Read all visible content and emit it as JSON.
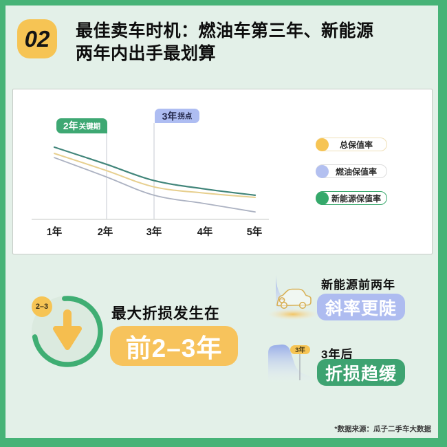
{
  "colors": {
    "frame_green": "#47B377",
    "background_mint": "#E3F0E8",
    "card_white": "#FFFFFF",
    "badge_yellow": "#F6C454",
    "pill_yellow": "#F7C35C",
    "pill_lavender": "#AEBCF0",
    "pill_green": "#3EA371",
    "ring_green": "#3FAE73",
    "arrow_yellow": "#F5BE4F"
  },
  "header": {
    "badge": "02",
    "title_line1": "最佳卖车时机：燃油车第三年、新能源",
    "title_line2": "两年内出手最划算"
  },
  "chart": {
    "flags": [
      {
        "big": "2年",
        "small": "关键期",
        "color": "#3EA873"
      },
      {
        "big": "3年",
        "small": "拐点",
        "color": "#AEBDF2"
      }
    ],
    "legend_borders": [
      "#EFDFB6",
      "#DCDCDC",
      "#3AA86D"
    ]
  },
  "chart_data": {
    "type": "line",
    "categories": [
      "1年",
      "2年",
      "3年",
      "4年",
      "5年"
    ],
    "series": [
      {
        "name": "总保值率",
        "color": "#F6C454",
        "stroke": "#E7CF8E",
        "values": [
          75,
          67,
          59,
          56,
          54
        ]
      },
      {
        "name": "燃油保值率",
        "color": "#B3C0F0",
        "stroke": "#ACB2C2",
        "values": [
          73,
          64,
          55,
          51,
          47
        ]
      },
      {
        "name": "新能源保值率",
        "color": "#35A96B",
        "stroke": "#41857A",
        "values": [
          78,
          70,
          62,
          58,
          55
        ]
      }
    ],
    "ylim_est": [
      40,
      85
    ],
    "y_axis_labeled": false,
    "grid": false,
    "legend_position": "right",
    "annotations": [
      "2年关键期",
      "3年拐点"
    ]
  },
  "highlight": {
    "badge": "2–3",
    "heading": "最大折损发生在",
    "value": "前2–3年"
  },
  "insights": [
    {
      "title": "新能源前两年",
      "pill": "斜率更陡"
    },
    {
      "title": "3年后",
      "pill": "折损趋缓",
      "flag": "3年"
    }
  ],
  "footnote": "*数据来源：瓜子二手车大数据"
}
